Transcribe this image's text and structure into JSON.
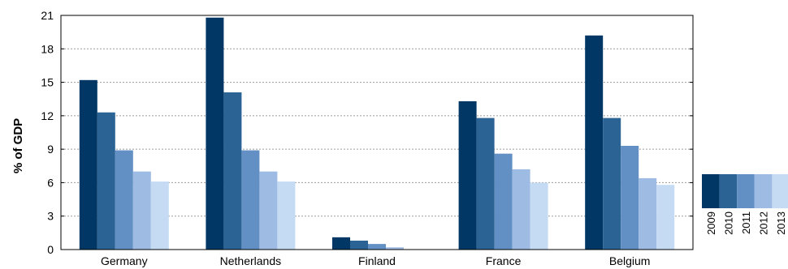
{
  "chart_data": {
    "type": "bar",
    "title": "",
    "xlabel": "",
    "ylabel": "% of GDP",
    "ylim": [
      0,
      21
    ],
    "yticks": [
      0,
      3,
      6,
      9,
      12,
      15,
      18,
      21
    ],
    "grid": "horizontal dotted",
    "legend_position": "right",
    "categories": [
      "Germany",
      "Netherlands",
      "Finland",
      "France",
      "Belgium"
    ],
    "series": [
      {
        "name": "2009",
        "color": "#003765",
        "values": [
          15.2,
          20.8,
          1.1,
          13.3,
          19.2
        ]
      },
      {
        "name": "2010",
        "color": "#2b6395",
        "values": [
          12.3,
          14.1,
          0.8,
          11.8,
          11.8
        ]
      },
      {
        "name": "2011",
        "color": "#6390c4",
        "values": [
          8.9,
          8.9,
          0.5,
          8.6,
          9.3
        ]
      },
      {
        "name": "2012",
        "color": "#9ebbe3",
        "values": [
          7.0,
          7.0,
          0.2,
          7.2,
          6.4
        ]
      },
      {
        "name": "2013",
        "color": "#c5dbf3",
        "values": [
          6.1,
          6.1,
          0.0,
          6.0,
          5.8
        ]
      }
    ]
  }
}
